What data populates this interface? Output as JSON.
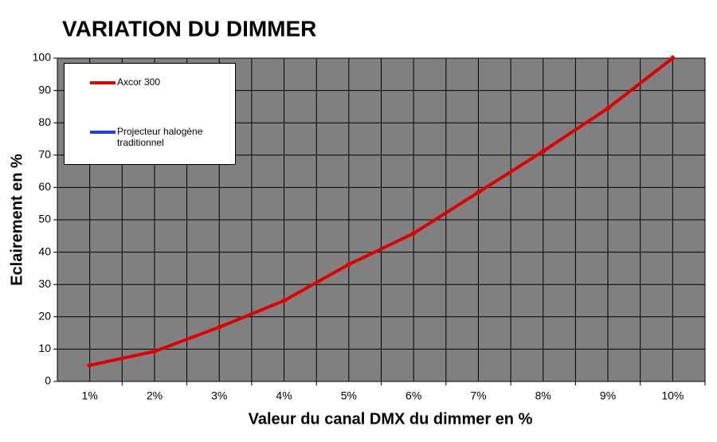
{
  "chart_data": {
    "type": "line",
    "title": "VARIATION DU DIMMER",
    "x_label": "Valeur du canal DMX du dimmer en %",
    "y_label": "Eclairement en %",
    "categories": [
      "1%",
      "2%",
      "3%",
      "4%",
      "5%",
      "6%",
      "7%",
      "8%",
      "9%",
      "10%"
    ],
    "series": [
      {
        "name": "Axcor 300",
        "color": "#e00000",
        "values": [
          5,
          9.3,
          16.8,
          25,
          36.2,
          45.8,
          58.5,
          71.2,
          84.5,
          100
        ]
      },
      {
        "name": "Projecteur halogène traditionnel",
        "color": "#2040e0",
        "values": [
          null,
          null,
          null,
          null,
          null,
          null,
          null,
          null,
          null,
          null
        ]
      }
    ],
    "ylim": [
      0,
      100
    ],
    "yticks": [
      0,
      10,
      20,
      30,
      40,
      50,
      60,
      70,
      80,
      90,
      100
    ],
    "grid": true,
    "legend": "top-left"
  }
}
